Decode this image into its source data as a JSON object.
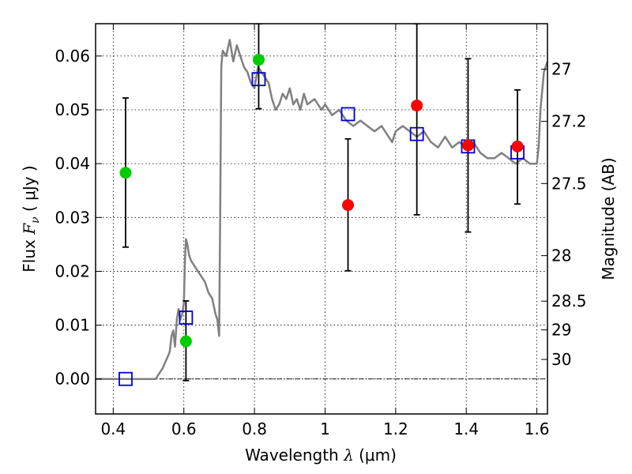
{
  "chart_data": {
    "type": "scatter",
    "xlabel": {
      "prefix": "Wavelength  ",
      "symbol": "λ",
      "unit": " (μm)"
    },
    "ylabel": {
      "prefix": "Flux  ",
      "symbol": "F",
      "subscript": "ν",
      "unit": "  ( μJy )"
    },
    "y2label": "Magnitude (AB)",
    "xlim": [
      0.35,
      1.63
    ],
    "ylim": [
      -0.0065,
      0.066
    ],
    "x_ticks": [
      0.4,
      0.6,
      0.8,
      1.0,
      1.2,
      1.4,
      1.6
    ],
    "x_tick_labels": [
      "0.4",
      "0.6",
      "0.8",
      "1",
      "1.2",
      "1.4",
      "1.6"
    ],
    "y_ticks": [
      0.0,
      0.01,
      0.02,
      0.03,
      0.04,
      0.05,
      0.06
    ],
    "y_tick_labels": [
      "0.00",
      "0.01",
      "0.02",
      "0.03",
      "0.04",
      "0.05",
      "0.06"
    ],
    "y2_ticks": [
      {
        "label": "27",
        "mag": 27.0
      },
      {
        "label": "27.2",
        "mag": 27.2
      },
      {
        "label": "27.5",
        "mag": 27.5
      },
      {
        "label": "28",
        "mag": 28.0
      },
      {
        "label": "28.5",
        "mag": 28.5
      },
      {
        "label": "29",
        "mag": 29.0
      },
      {
        "label": "30",
        "mag": 30.0
      }
    ],
    "grid": true,
    "zero_line": true,
    "series": [
      {
        "kind": "model_spectrum_line",
        "color": "#808080",
        "x": [
          0.35,
          0.52,
          0.54,
          0.56,
          0.565,
          0.57,
          0.575,
          0.58,
          0.585,
          0.59,
          0.595,
          0.6,
          0.603,
          0.606,
          0.61,
          0.615,
          0.62,
          0.63,
          0.64,
          0.65,
          0.66,
          0.67,
          0.68,
          0.69,
          0.695,
          0.7,
          0.703,
          0.706,
          0.71,
          0.72,
          0.73,
          0.74,
          0.75,
          0.76,
          0.77,
          0.78,
          0.79,
          0.8,
          0.81,
          0.82,
          0.83,
          0.84,
          0.85,
          0.86,
          0.87,
          0.88,
          0.89,
          0.9,
          0.91,
          0.92,
          0.93,
          0.94,
          0.95,
          0.97,
          0.99,
          1.0,
          1.02,
          1.04,
          1.06,
          1.08,
          1.1,
          1.12,
          1.14,
          1.16,
          1.18,
          1.19,
          1.2,
          1.22,
          1.24,
          1.26,
          1.28,
          1.3,
          1.32,
          1.34,
          1.36,
          1.38,
          1.4,
          1.42,
          1.44,
          1.46,
          1.48,
          1.5,
          1.52,
          1.54,
          1.56,
          1.58,
          1.6,
          1.605,
          1.61,
          1.62,
          1.63
        ],
        "y": [
          0.0,
          0.0,
          0.002,
          0.005,
          0.008,
          0.009,
          0.006,
          0.011,
          0.013,
          0.011,
          0.012,
          0.014,
          0.022,
          0.026,
          0.025,
          0.023,
          0.022,
          0.021,
          0.02,
          0.019,
          0.018,
          0.016,
          0.015,
          0.012,
          0.011,
          0.008,
          0.03,
          0.058,
          0.061,
          0.06,
          0.063,
          0.059,
          0.062,
          0.06,
          0.058,
          0.057,
          0.055,
          0.054,
          0.058,
          0.057,
          0.056,
          0.055,
          0.052,
          0.05,
          0.051,
          0.053,
          0.052,
          0.054,
          0.051,
          0.052,
          0.05,
          0.053,
          0.051,
          0.052,
          0.05,
          0.051,
          0.049,
          0.05,
          0.048,
          0.047,
          0.048,
          0.047,
          0.046,
          0.047,
          0.045,
          0.044,
          0.046,
          0.047,
          0.046,
          0.045,
          0.046,
          0.044,
          0.043,
          0.045,
          0.043,
          0.044,
          0.043,
          0.044,
          0.042,
          0.041,
          0.041,
          0.042,
          0.041,
          0.04,
          0.041,
          0.04,
          0.04,
          0.043,
          0.05,
          0.057,
          0.059
        ]
      },
      {
        "kind": "detections",
        "color": "#ff0000",
        "marker": "circle",
        "points": [
          {
            "x": 1.065,
            "y": 0.0323,
            "err_low": 0.0201,
            "err_high": 0.0446
          },
          {
            "x": 1.26,
            "y": 0.0508,
            "err_low": 0.0305,
            "err_high": 0.066
          },
          {
            "x": 1.405,
            "y": 0.0434,
            "err_low": 0.0273,
            "err_high": 0.0595
          },
          {
            "x": 1.545,
            "y": 0.0432,
            "err_low": 0.0325,
            "err_high": 0.0537
          }
        ]
      },
      {
        "kind": "upper_limits",
        "color": "#00cc00",
        "marker": "circle",
        "points": [
          {
            "x": 0.435,
            "y": 0.0383,
            "err_low": 0.0245,
            "err_high": 0.0522
          },
          {
            "x": 0.606,
            "y": 0.007,
            "err_low": -0.0003,
            "err_high": 0.0145
          },
          {
            "x": 0.812,
            "y": 0.0593,
            "err_low": 0.0502,
            "err_high": 0.066
          }
        ]
      },
      {
        "kind": "model_photometry",
        "color": "#0000cc",
        "marker": "open_square",
        "points": [
          {
            "x": 0.435,
            "y": 0.0
          },
          {
            "x": 0.606,
            "y": 0.0114
          },
          {
            "x": 0.812,
            "y": 0.0557
          },
          {
            "x": 1.065,
            "y": 0.0492
          },
          {
            "x": 1.26,
            "y": 0.0455
          },
          {
            "x": 1.405,
            "y": 0.0432
          },
          {
            "x": 1.545,
            "y": 0.0421
          }
        ]
      }
    ]
  }
}
